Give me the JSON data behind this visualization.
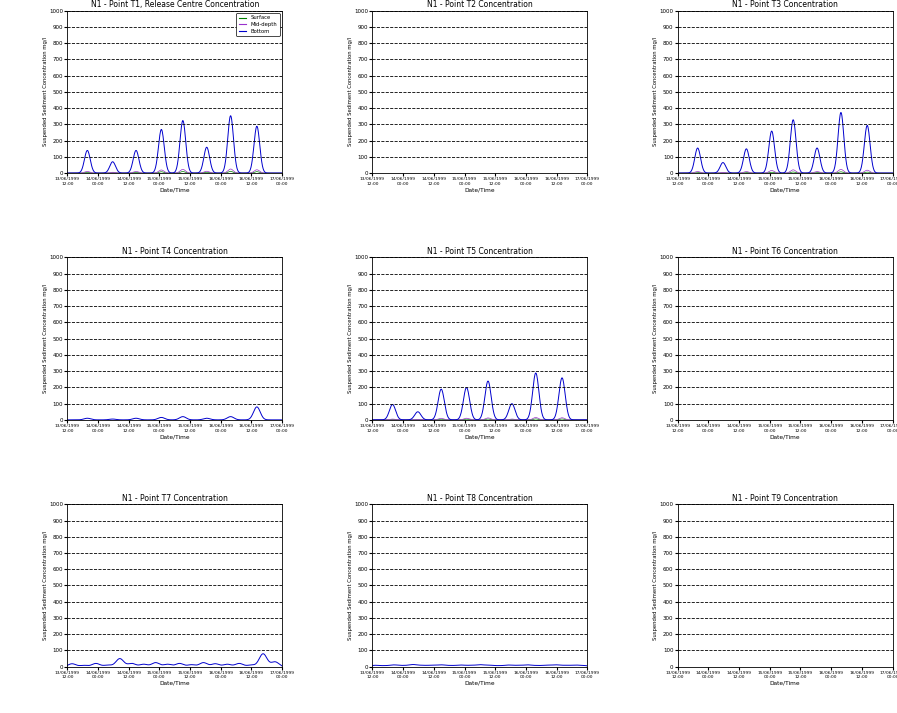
{
  "titles": [
    "N1 - Point T1, Release Centre Concentration",
    "N1 - Point T2 Concentration",
    "N1 - Point T3 Concentration",
    "N1 - Point T4 Concentration",
    "N1 - Point T5 Concentration",
    "N1 - Point T6 Concentration",
    "N1 - Point T7 Concentration",
    "N1 - Point T8 Concentration",
    "N1 - Point T9 Concentration"
  ],
  "ylabel": "Suspended Sediment Concentration mg/l",
  "xlabel": "Date/Time",
  "ylim": [
    0,
    1000
  ],
  "line_color_surface": "#008000",
  "line_color_mid": "#9932CC",
  "line_color_bottom": "#0000CD",
  "legend_labels": [
    "Surface",
    "Mid-depth",
    "Bottom"
  ],
  "x_tick_labels": [
    "13/06/1999\n12:00",
    "14/06/1999\n00:00",
    "14/06/1999\n12:00",
    "15/06/1999\n00:00",
    "15/06/1999\n12:00",
    "16/06/1999\n00:00",
    "16/06/1999\n12:00",
    "17/06/1999\n00:00"
  ],
  "background_color": "#ffffff",
  "subplot_bg": "#ffffff",
  "grid_color": "#000000"
}
